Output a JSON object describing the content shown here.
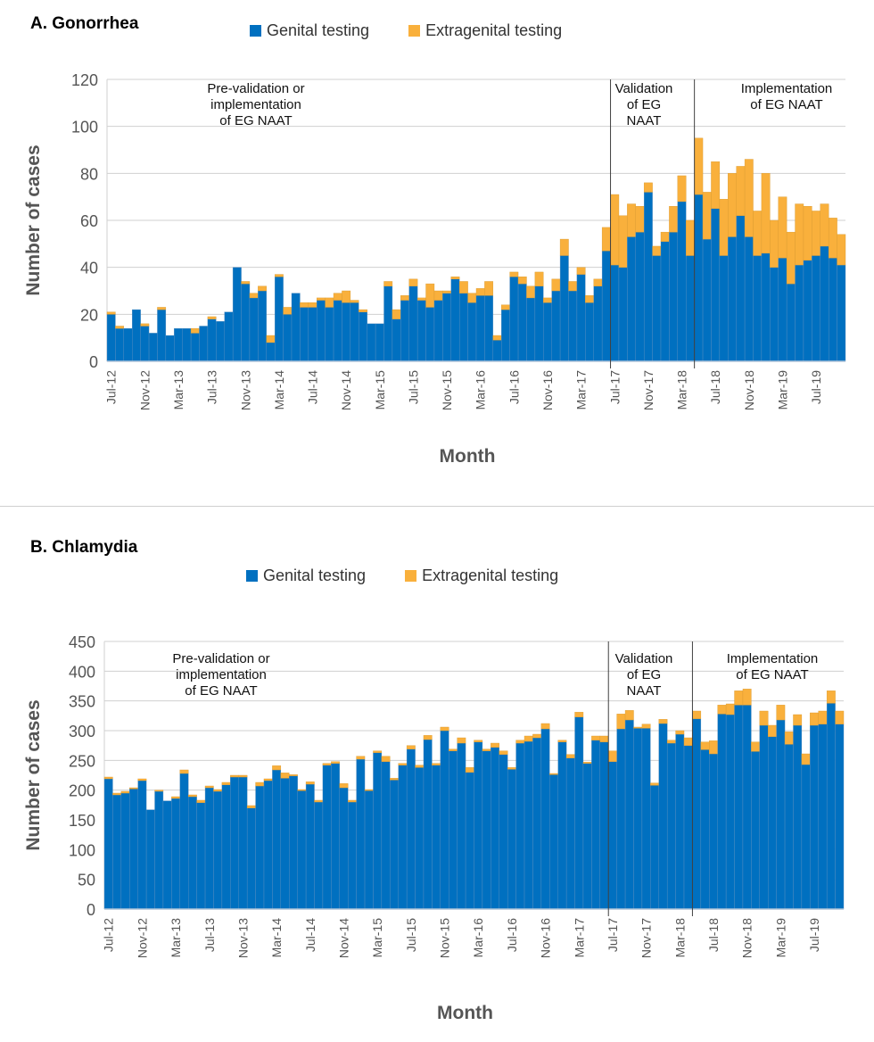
{
  "colors": {
    "genital": "#0070c0",
    "extragenital": "#f9b03c",
    "grid": "#d0d0d0",
    "phase_line": "#404040"
  },
  "chart_data": [
    {
      "type": "bar",
      "stacked": true,
      "title": "A. Gonorrhea",
      "xlabel": "Month",
      "ylabel": "Number of cases",
      "ylim": [
        0,
        120
      ],
      "yticks": [
        0,
        20,
        40,
        60,
        80,
        100,
        120
      ],
      "grid": true,
      "legend_position": "top",
      "legend": [
        "Genital testing",
        "Extragenital testing"
      ],
      "start_month": "Jul-12",
      "xtick_labels": [
        "Jul-12",
        "Nov-12",
        "Mar-13",
        "Jul-13",
        "Nov-13",
        "Mar-14",
        "Jul-14",
        "Nov-14",
        "Mar-15",
        "Jul-15",
        "Nov-15",
        "Mar-16",
        "Jul-16",
        "Nov-16",
        "Mar-17",
        "Jul-17",
        "Nov-17",
        "Mar-18",
        "Jul-18",
        "Nov-18",
        "Mar-19",
        "Jul-19"
      ],
      "xtick_every": 4,
      "phase_boundaries": [
        60,
        70
      ],
      "annotations": [
        {
          "lines": [
            "Pre-validation or",
            "implementation",
            "of EG NAAT"
          ],
          "phase": 0
        },
        {
          "lines": [
            "Validation",
            "of EG",
            "NAAT"
          ],
          "phase": 1
        },
        {
          "lines": [
            "Implementation",
            "of EG NAAT"
          ],
          "phase": 2
        }
      ],
      "series": [
        {
          "name": "Genital testing",
          "values": [
            20,
            14,
            14,
            22,
            15,
            12,
            22,
            11,
            14,
            14,
            12,
            15,
            18,
            17,
            21,
            40,
            33,
            27,
            30,
            8,
            36,
            20,
            29,
            23,
            23,
            26,
            23,
            26,
            25,
            25,
            21,
            16,
            16,
            32,
            18,
            26,
            32,
            26,
            23,
            26,
            29,
            35,
            29,
            25,
            28,
            28,
            9,
            22,
            36,
            33,
            27,
            32,
            25,
            30,
            45,
            30,
            37,
            25,
            32,
            47,
            41,
            40,
            53,
            55,
            72,
            45,
            51,
            55,
            68,
            45,
            71,
            52,
            65,
            45,
            53,
            62,
            53,
            45,
            46,
            40,
            44,
            33,
            41,
            43,
            45,
            49,
            44,
            41
          ]
        },
        {
          "name": "Extragenital testing",
          "values": [
            1,
            1,
            0,
            0,
            1,
            0,
            1,
            0,
            0,
            0,
            2,
            0,
            1,
            0,
            0,
            0,
            1,
            2,
            2,
            3,
            1,
            3,
            0,
            2,
            2,
            1,
            4,
            3,
            5,
            1,
            1,
            0,
            0,
            2,
            4,
            2,
            3,
            1,
            10,
            4,
            1,
            1,
            5,
            4,
            3,
            6,
            2,
            2,
            2,
            3,
            5,
            6,
            2,
            5,
            7,
            4,
            3,
            3,
            3,
            10,
            30,
            22,
            14,
            11,
            4,
            4,
            4,
            11,
            11,
            15,
            24,
            20,
            20,
            24,
            27,
            21,
            33,
            19,
            34,
            20,
            26,
            22,
            26,
            23,
            19,
            18,
            17,
            13
          ]
        }
      ]
    },
    {
      "type": "bar",
      "stacked": true,
      "title": "B. Chlamydia",
      "xlabel": "Month",
      "ylabel": "Number of cases",
      "ylim": [
        0,
        450
      ],
      "yticks": [
        0,
        50,
        100,
        150,
        200,
        250,
        300,
        350,
        400,
        450
      ],
      "grid": true,
      "legend_position": "top",
      "legend": [
        "Genital testing",
        "Extragenital testing"
      ],
      "start_month": "Jul-12",
      "xtick_labels": [
        "Jul-12",
        "Nov-12",
        "Mar-13",
        "Jul-13",
        "Nov-13",
        "Mar-14",
        "Jul-14",
        "Nov-14",
        "Mar-15",
        "Jul-15",
        "Nov-15",
        "Mar-16",
        "Jul-16",
        "Nov-16",
        "Mar-17",
        "Jul-17",
        "Nov-17",
        "Mar-18",
        "Jul-18",
        "Nov-18",
        "Mar-19",
        "Jul-19"
      ],
      "xtick_every": 4,
      "phase_boundaries": [
        60,
        70
      ],
      "annotations": [
        {
          "lines": [
            "Pre-validation or",
            "implementation",
            "of EG NAAT"
          ],
          "phase": 0
        },
        {
          "lines": [
            "Validation",
            "of EG",
            "NAAT"
          ],
          "phase": 1
        },
        {
          "lines": [
            "Implementation",
            "of EG NAAT"
          ],
          "phase": 2
        }
      ],
      "series": [
        {
          "name": "Genital testing",
          "values": [
            219,
            192,
            195,
            202,
            216,
            167,
            198,
            182,
            186,
            228,
            189,
            179,
            204,
            198,
            209,
            222,
            222,
            170,
            207,
            216,
            234,
            220,
            224,
            199,
            210,
            180,
            242,
            245,
            204,
            180,
            252,
            199,
            263,
            248,
            217,
            242,
            269,
            238,
            285,
            242,
            300,
            266,
            279,
            230,
            281,
            266,
            272,
            260,
            235,
            279,
            282,
            288,
            303,
            226,
            281,
            254,
            323,
            245,
            284,
            281,
            248,
            303,
            318,
            304,
            304,
            208,
            312,
            279,
            294,
            275,
            320,
            268,
            261,
            328,
            327,
            343,
            343,
            265,
            309,
            290,
            318,
            277,
            309,
            243,
            309,
            311,
            346,
            311
          ]
        },
        {
          "name": "Extragenital testing",
          "values": [
            3,
            3,
            3,
            2,
            3,
            0,
            2,
            0,
            3,
            6,
            3,
            4,
            3,
            3,
            4,
            3,
            3,
            4,
            6,
            3,
            7,
            9,
            2,
            2,
            4,
            3,
            3,
            3,
            7,
            3,
            5,
            2,
            3,
            9,
            3,
            3,
            6,
            4,
            7,
            3,
            6,
            3,
            9,
            8,
            3,
            3,
            7,
            6,
            3,
            5,
            9,
            6,
            9,
            2,
            3,
            6,
            8,
            2,
            7,
            10,
            18,
            25,
            16,
            2,
            7,
            4,
            7,
            5,
            6,
            13,
            13,
            13,
            22,
            15,
            18,
            24,
            27,
            16,
            24,
            19,
            25,
            21,
            18,
            18,
            21,
            22,
            21,
            22
          ]
        }
      ]
    }
  ]
}
